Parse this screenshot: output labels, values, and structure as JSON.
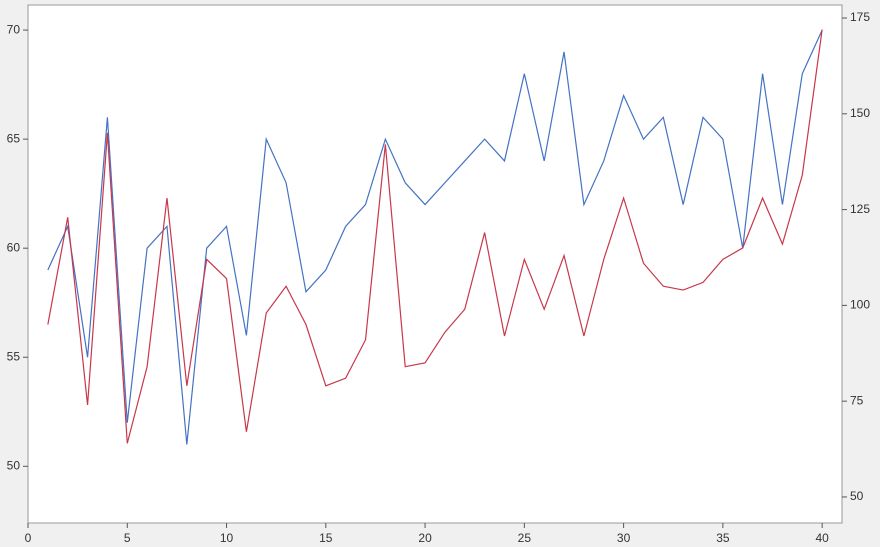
{
  "chart_data": {
    "type": "line",
    "x": [
      1,
      2,
      3,
      4,
      5,
      6,
      7,
      8,
      9,
      10,
      11,
      12,
      13,
      14,
      15,
      16,
      17,
      18,
      19,
      20,
      21,
      22,
      23,
      24,
      25,
      26,
      27,
      28,
      29,
      30,
      31,
      32,
      33,
      34,
      35,
      36,
      37,
      38,
      39,
      40
    ],
    "series": [
      {
        "color": "#4472c4",
        "values": [
          59,
          61,
          55,
          66,
          52,
          60,
          61,
          51,
          60,
          61,
          56,
          65,
          63,
          58,
          59,
          61,
          62,
          65,
          63,
          62,
          63,
          64,
          65,
          64,
          68,
          64,
          69,
          62,
          64,
          67,
          65,
          66,
          62,
          66,
          65,
          60,
          68,
          62,
          68,
          70
        ]
      },
      {
        "color": "#c8374a",
        "axis": "y2",
        "values": [
          95,
          123,
          74,
          145,
          64,
          84,
          128,
          79,
          112,
          107,
          67,
          98,
          105,
          95,
          79,
          81,
          91,
          142,
          84,
          85,
          93,
          99,
          119,
          92,
          112,
          99,
          113,
          92,
          112,
          128,
          111,
          105,
          104,
          106,
          112,
          115,
          128,
          116,
          134,
          172
        ]
      }
    ],
    "xlim": [
      0,
      41
    ],
    "xticks": [
      0,
      5,
      10,
      15,
      20,
      25,
      30,
      35,
      40
    ],
    "ylim": [
      47.4,
      71.15
    ],
    "yticks": [
      50,
      55,
      60,
      65,
      70
    ],
    "y2lim": [
      43.2,
      178.4
    ],
    "y2ticks": [
      50,
      75,
      100,
      125,
      150,
      175
    ]
  }
}
